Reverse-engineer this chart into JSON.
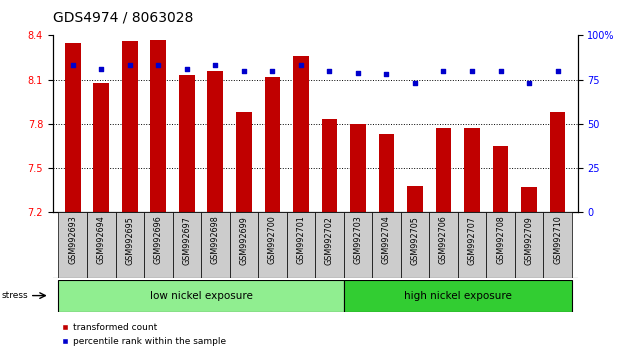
{
  "title": "GDS4974 / 8063028",
  "samples": [
    "GSM992693",
    "GSM992694",
    "GSM992695",
    "GSM992696",
    "GSM992697",
    "GSM992698",
    "GSM992699",
    "GSM992700",
    "GSM992701",
    "GSM992702",
    "GSM992703",
    "GSM992704",
    "GSM992705",
    "GSM992706",
    "GSM992707",
    "GSM992708",
    "GSM992709",
    "GSM992710"
  ],
  "red_values": [
    8.35,
    8.08,
    8.36,
    8.37,
    8.13,
    8.16,
    7.88,
    8.12,
    8.26,
    7.83,
    7.8,
    7.73,
    7.38,
    7.77,
    7.77,
    7.65,
    7.37,
    7.88
  ],
  "blue_values": [
    83,
    81,
    83,
    83,
    81,
    83,
    80,
    80,
    83,
    80,
    79,
    78,
    73,
    80,
    80,
    80,
    73,
    80
  ],
  "ylim_left": [
    7.2,
    8.4
  ],
  "ylim_right": [
    0,
    100
  ],
  "yticks_left": [
    7.2,
    7.5,
    7.8,
    8.1,
    8.4
  ],
  "yticks_right": [
    0,
    25,
    50,
    75,
    100
  ],
  "ytick_labels_right": [
    "0",
    "25",
    "50",
    "75",
    "100%"
  ],
  "grid_values": [
    7.5,
    7.8,
    8.1
  ],
  "low_nickel_count": 10,
  "high_nickel_count": 8,
  "low_nickel_label": "low nickel exposure",
  "high_nickel_label": "high nickel exposure",
  "stress_label": "stress",
  "legend_red": "transformed count",
  "legend_blue": "percentile rank within the sample",
  "bar_color": "#C00000",
  "dot_color": "#0000CC",
  "low_bg_color": "#90EE90",
  "high_bg_color": "#32CD32",
  "bar_bottom": 7.2,
  "title_fontsize": 10,
  "tick_fontsize": 7,
  "label_fontsize": 7.5
}
